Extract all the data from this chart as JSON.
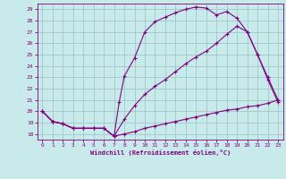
{
  "xlabel": "Windchill (Refroidissement éolien,°C)",
  "bg_color": "#c8eaea",
  "line_color": "#800080",
  "grid_color": "#a0c8c8",
  "xlim": [
    -0.5,
    23.5
  ],
  "ylim": [
    17.5,
    29.5
  ],
  "xticks": [
    0,
    1,
    2,
    3,
    4,
    5,
    6,
    7,
    8,
    9,
    10,
    11,
    12,
    13,
    14,
    15,
    16,
    17,
    18,
    19,
    20,
    21,
    22,
    23
  ],
  "yticks": [
    18,
    19,
    20,
    21,
    22,
    23,
    24,
    25,
    26,
    27,
    28,
    29
  ],
  "curve1_x": [
    0,
    1,
    2,
    3,
    4,
    5,
    6,
    7,
    8,
    9,
    10,
    11,
    12,
    13,
    14,
    15,
    16,
    17,
    18,
    19,
    20,
    21,
    22,
    23
  ],
  "curve1_y": [
    20.0,
    19.1,
    18.9,
    18.5,
    18.5,
    18.5,
    18.5,
    17.8,
    18.0,
    18.2,
    18.5,
    18.7,
    18.9,
    19.1,
    19.3,
    19.5,
    19.7,
    19.9,
    20.1,
    20.2,
    20.4,
    20.5,
    20.7,
    21.0
  ],
  "curve2_x": [
    0,
    1,
    2,
    3,
    4,
    5,
    6,
    7,
    7.5,
    8,
    9,
    10,
    11,
    12,
    13,
    14,
    15,
    16,
    17,
    18,
    19,
    20,
    21,
    22,
    23
  ],
  "curve2_y": [
    20.0,
    19.1,
    18.9,
    18.5,
    18.5,
    18.5,
    18.5,
    17.8,
    20.8,
    23.1,
    24.7,
    27.0,
    27.9,
    28.3,
    28.7,
    29.0,
    29.2,
    29.1,
    28.5,
    28.8,
    28.2,
    27.0,
    25.0,
    22.8,
    20.8
  ],
  "curve3_x": [
    0,
    1,
    2,
    3,
    4,
    5,
    6,
    7,
    8,
    9,
    10,
    11,
    12,
    13,
    14,
    15,
    16,
    17,
    18,
    19,
    20,
    21,
    22,
    23
  ],
  "curve3_y": [
    20.0,
    19.1,
    18.9,
    18.5,
    18.5,
    18.5,
    18.5,
    17.8,
    19.3,
    20.5,
    21.5,
    22.2,
    22.8,
    23.5,
    24.2,
    24.8,
    25.3,
    26.0,
    26.8,
    27.5,
    27.0,
    25.0,
    23.0,
    21.0
  ]
}
